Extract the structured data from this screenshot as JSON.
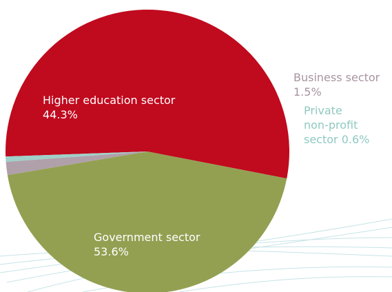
{
  "chart_data": {
    "type": "pie",
    "title": "",
    "slices": [
      {
        "name": "Government sector",
        "value": 53.6,
        "color": "#c00a1e",
        "label_lines": [
          "Government sector",
          "53.6%"
        ],
        "label_color": "#ffffff"
      },
      {
        "name": "Higher education sector",
        "value": 44.3,
        "color": "#93a052",
        "label_lines": [
          "Higher education sector",
          "44.3%"
        ],
        "label_color": "#ffffff"
      },
      {
        "name": "Business sector",
        "value": 1.5,
        "color": "#b0a0aa",
        "label_lines": [
          "Business sector",
          "1.5%"
        ],
        "label_color": "#a7939f"
      },
      {
        "name": "Private non-profit sector",
        "value": 0.6,
        "color": "#9fd0c9",
        "label_lines": [
          "Private",
          "non-profit",
          "sector 0.6%"
        ],
        "label_color": "#8fc9c0"
      }
    ],
    "legend": "none",
    "decoration_color": "#c7e3e6"
  }
}
